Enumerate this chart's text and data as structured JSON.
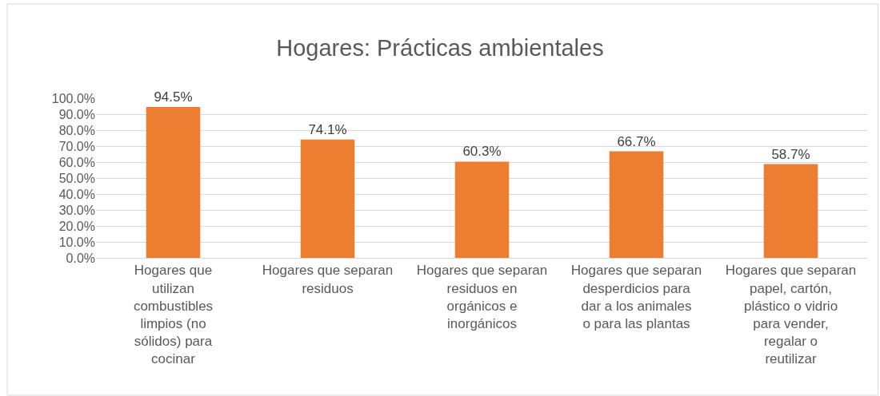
{
  "chart_data": {
    "type": "bar",
    "title": "Hogares: Prácticas ambientales",
    "categories": [
      "Hogares que utilizan combustibles limpios (no sólidos) para cocinar",
      "Hogares que separan residuos",
      "Hogares que separan residuos en orgánicos e inorgánicos",
      "Hogares que separan desperdicios para dar a los animales o para las plantas",
      "Hogares que separan papel, cartón, plástico o vidrio para vender, regalar o reutilizar"
    ],
    "values": [
      94.5,
      74.1,
      60.3,
      66.7,
      58.7
    ],
    "value_labels": [
      "94.5%",
      "74.1%",
      "60.3%",
      "66.7%",
      "58.7%"
    ],
    "color": "#ed7d31",
    "ylim": [
      0,
      100
    ],
    "yticks": [
      {
        "value": 0,
        "label": "0.0%"
      },
      {
        "value": 10,
        "label": "10.0%"
      },
      {
        "value": 20,
        "label": "20.0%"
      },
      {
        "value": 30,
        "label": "30.0%"
      },
      {
        "value": 40,
        "label": "40.0%"
      },
      {
        "value": 50,
        "label": "50.0%"
      },
      {
        "value": 60,
        "label": "60.0%"
      },
      {
        "value": 70,
        "label": "70.0%"
      },
      {
        "value": 80,
        "label": "80.0%"
      },
      {
        "value": 90,
        "label": "90.0%"
      },
      {
        "value": 100,
        "label": "100.0%"
      }
    ],
    "grid": "y"
  }
}
